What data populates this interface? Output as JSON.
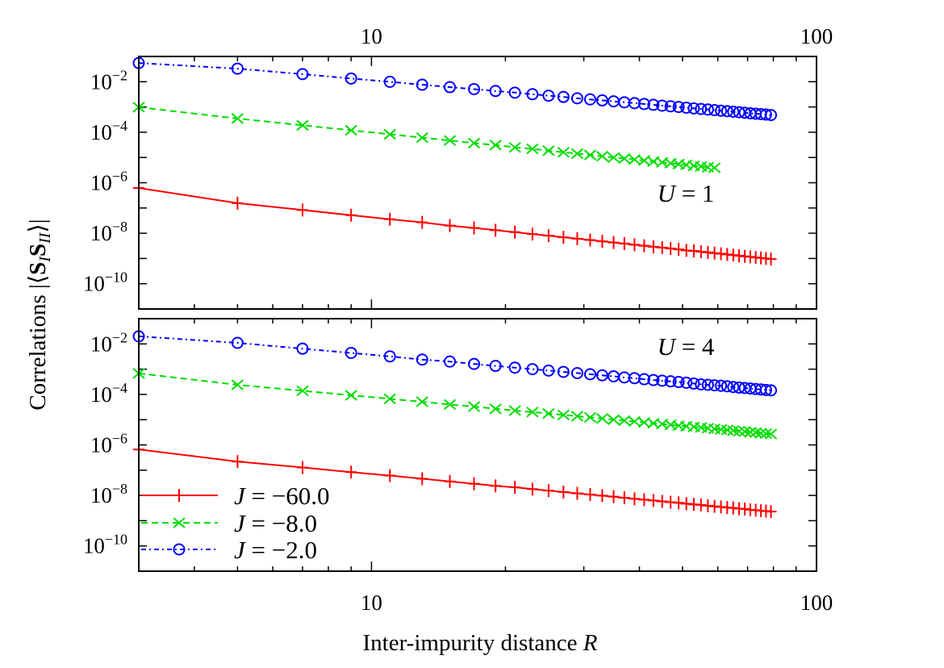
{
  "chart_data": [
    {
      "type": "line",
      "panel": "top",
      "annotation": "U = 1",
      "xscale": "log",
      "yscale": "log",
      "xlim": [
        3,
        100
      ],
      "ylim": [
        1e-11,
        0.1
      ],
      "x_tick_labels": [
        "10",
        "100"
      ],
      "y_tick_labels": [
        {
          "base": "10",
          "exp": "−2"
        },
        {
          "base": "10",
          "exp": "−4"
        },
        {
          "base": "10",
          "exp": "−6"
        },
        {
          "base": "10",
          "exp": "−8"
        },
        {
          "base": "10",
          "exp": "−10"
        }
      ],
      "series": [
        {
          "name": "J = −60.0",
          "color": "#ff0000",
          "marker": "plus",
          "line": "solid",
          "x": [
            3,
            5,
            7,
            9,
            11,
            13,
            15,
            17,
            19,
            21,
            23,
            25,
            27,
            29,
            31,
            33,
            35,
            37,
            39,
            41,
            43,
            45,
            47,
            49,
            51,
            53,
            55,
            57,
            59,
            61,
            63,
            65,
            67,
            69,
            71,
            73,
            75,
            77,
            79
          ],
          "y": [
            6.2e-07,
            1.55e-07,
            8.3e-08,
            5.2e-08,
            3.6e-08,
            2.7e-08,
            2e-08,
            1.62e-08,
            1.32e-08,
            1.1e-08,
            9.3e-09,
            8e-09,
            6.9e-09,
            6.1e-09,
            5.4e-09,
            4.8e-09,
            4.3e-09,
            3.9e-09,
            3.5e-09,
            3.2e-09,
            2.9e-09,
            2.7e-09,
            2.5e-09,
            2.3e-09,
            2.1e-09,
            2e-09,
            1.86e-09,
            1.74e-09,
            1.63e-09,
            1.54e-09,
            1.45e-09,
            1.37e-09,
            1.29e-09,
            1.22e-09,
            1.16e-09,
            1.1e-09,
            1.05e-09,
            1e-09,
            9.5e-10
          ]
        },
        {
          "name": "J = −8.0",
          "color": "#00dd00",
          "marker": "cross",
          "line": "dashed",
          "x": [
            3,
            5,
            7,
            9,
            11,
            13,
            15,
            17,
            19,
            21,
            23,
            25,
            27,
            29,
            31,
            33,
            35,
            37,
            39,
            41,
            43,
            45,
            47,
            49,
            51,
            53,
            55,
            57,
            59
          ],
          "y": [
            0.00098,
            0.00035,
            0.000188,
            0.000119,
            8.3e-05,
            6.1e-05,
            4.7e-05,
            3.7e-05,
            3.1e-05,
            2.5e-05,
            2.2e-05,
            1.86e-05,
            1.61e-05,
            1.42e-05,
            1.26e-05,
            1.12e-05,
            1e-05,
            9.1e-06,
            8.3e-06,
            7.6e-06,
            6.9e-06,
            6.4e-06,
            5.9e-06,
            5.5e-06,
            5.1e-06,
            4.7e-06,
            4.4e-06,
            4.1e-06,
            3.9e-06
          ]
        },
        {
          "name": "J = −2.0",
          "color": "#0000ff",
          "marker": "circle",
          "line": "dash-dot",
          "x": [
            3,
            5,
            7,
            9,
            11,
            13,
            15,
            17,
            19,
            21,
            23,
            25,
            27,
            29,
            31,
            33,
            35,
            37,
            39,
            41,
            43,
            45,
            47,
            49,
            51,
            53,
            55,
            57,
            59,
            61,
            63,
            65,
            67,
            69,
            71,
            73,
            75,
            77,
            79
          ],
          "y": [
            0.055,
            0.033,
            0.02,
            0.0134,
            0.0099,
            0.0076,
            0.0061,
            0.0051,
            0.0043,
            0.0037,
            0.0032,
            0.0028,
            0.0025,
            0.0022,
            0.002,
            0.00183,
            0.00167,
            0.00153,
            0.00142,
            0.00131,
            0.00122,
            0.00113,
            0.00106,
            0.001,
            0.00094,
            0.00088,
            0.00083,
            0.00079,
            0.00075,
            0.00071,
            0.00068,
            0.00065,
            0.00062,
            0.00059,
            0.00056,
            0.00054,
            0.00052,
            0.0005,
            0.00048
          ]
        }
      ]
    },
    {
      "type": "line",
      "panel": "bottom",
      "annotation": "U = 4",
      "xscale": "log",
      "yscale": "log",
      "xlim": [
        3,
        100
      ],
      "ylim": [
        1e-11,
        0.1
      ],
      "x_tick_labels": [
        "10",
        "100"
      ],
      "y_tick_labels": [
        {
          "base": "10",
          "exp": "−2"
        },
        {
          "base": "10",
          "exp": "−4"
        },
        {
          "base": "10",
          "exp": "−6"
        },
        {
          "base": "10",
          "exp": "−8"
        },
        {
          "base": "10",
          "exp": "−10"
        }
      ],
      "legend": "bottom-left",
      "series": [
        {
          "name": "J = −60.0",
          "color": "#ff0000",
          "marker": "plus",
          "line": "solid",
          "x": [
            3,
            5,
            7,
            9,
            11,
            13,
            15,
            17,
            19,
            21,
            23,
            25,
            27,
            29,
            31,
            33,
            35,
            37,
            39,
            41,
            43,
            45,
            47,
            49,
            51,
            53,
            55,
            57,
            59,
            61,
            63,
            65,
            67,
            69,
            71,
            73,
            75,
            77,
            79
          ],
          "y": [
            6.6e-07,
            2.2e-07,
            1.28e-07,
            8.4e-08,
            6.1e-08,
            4.6e-08,
            3.6e-08,
            2.9e-08,
            2.4e-08,
            2.1e-08,
            1.78e-08,
            1.55e-08,
            1.36e-08,
            1.21e-08,
            1.08e-08,
            9.8e-09,
            8.9e-09,
            8.1e-09,
            7.4e-09,
            6.8e-09,
            6.3e-09,
            5.8e-09,
            5.4e-09,
            5.1e-09,
            4.7e-09,
            4.4e-09,
            4.2e-09,
            3.9e-09,
            3.7e-09,
            3.5e-09,
            3.3e-09,
            3.2e-09,
            3e-09,
            2.9e-09,
            2.7e-09,
            2.6e-09,
            2.5e-09,
            2.4e-09,
            2.3e-09
          ]
        },
        {
          "name": "J = −8.0",
          "color": "#00dd00",
          "marker": "cross",
          "line": "dashed",
          "x": [
            3,
            5,
            7,
            9,
            11,
            13,
            15,
            17,
            19,
            21,
            23,
            25,
            27,
            29,
            31,
            33,
            35,
            37,
            39,
            41,
            43,
            45,
            47,
            49,
            51,
            53,
            55,
            57,
            59,
            61,
            63,
            65,
            67,
            69,
            71,
            73,
            75,
            77,
            79
          ],
          "y": [
            0.00068,
            0.00024,
            0.000139,
            9.2e-05,
            6.7e-05,
            5.1e-05,
            4e-05,
            3.3e-05,
            2.7e-05,
            2.3e-05,
            2e-05,
            1.75e-05,
            1.54e-05,
            1.37e-05,
            1.23e-05,
            1.11e-05,
            1e-05,
            9.2e-06,
            8.5e-06,
            7.8e-06,
            7.2e-06,
            6.7e-06,
            6.3e-06,
            5.8e-06,
            5.5e-06,
            5.2e-06,
            4.9e-06,
            4.6e-06,
            4.3e-06,
            4.1e-06,
            3.9e-06,
            3.7e-06,
            3.5e-06,
            3.4e-06,
            3.2e-06,
            3.1e-06,
            2.9e-06,
            2.8e-06,
            2.7e-06
          ]
        },
        {
          "name": "J = −2.0",
          "color": "#0000ff",
          "marker": "circle",
          "line": "dash-dot",
          "x": [
            3,
            5,
            7,
            9,
            11,
            13,
            15,
            17,
            19,
            21,
            23,
            25,
            27,
            29,
            31,
            33,
            35,
            37,
            39,
            41,
            43,
            45,
            47,
            49,
            51,
            53,
            55,
            57,
            59,
            61,
            63,
            65,
            67,
            69,
            71,
            73,
            75,
            77,
            79
          ],
          "y": [
            0.02,
            0.011,
            0.0065,
            0.0044,
            0.0032,
            0.0024,
            0.002,
            0.00161,
            0.00135,
            0.00115,
            0.001,
            0.00088,
            0.00078,
            0.0007,
            0.00063,
            0.00057,
            0.00052,
            0.00047,
            0.00044,
            0.0004,
            0.00037,
            0.00035,
            0.00033,
            0.00031,
            0.00029,
            0.00027,
            0.00025,
            0.00024,
            0.00023,
            0.00022,
            0.00021,
            0.000196,
            0.000187,
            0.000179,
            0.000171,
            0.000163,
            0.000157,
            0.00015,
            0.000145
          ]
        }
      ]
    }
  ],
  "xlabel": {
    "text": "Inter-impurity distance ",
    "var": "R"
  },
  "ylabel": {
    "prefix": "Correlations |⟨",
    "s1": "S",
    "sub1": "I",
    "s2": "S",
    "sub2": "II",
    "suffix": "⟩|"
  }
}
